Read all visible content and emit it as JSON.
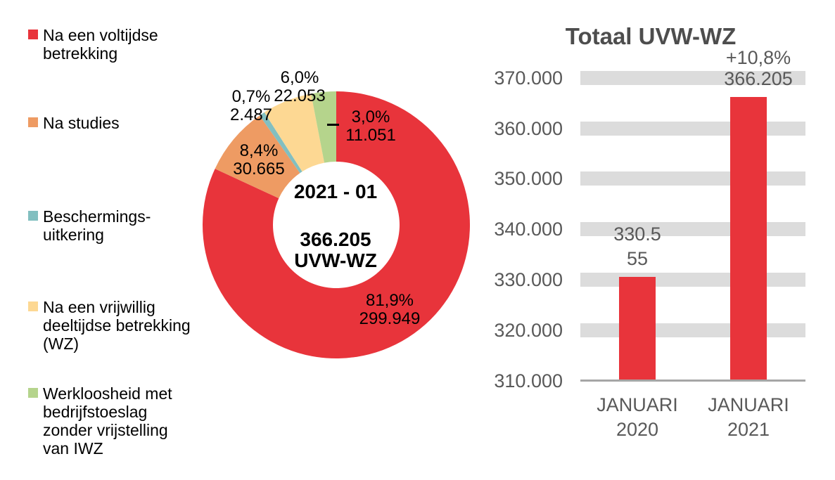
{
  "legend": {
    "items": [
      {
        "label": "Na een voltijdse\nbetrekking",
        "color": "#E8343B"
      },
      {
        "label": "Na studies",
        "color": "#EE9B63"
      },
      {
        "label": "Beschermings-\nuitkering",
        "color": "#82BFC0"
      },
      {
        "label": "Na een vrijwillig\ndeeltijdse betrekking\n(WZ)",
        "color": "#FDD893"
      },
      {
        "label": "Werkloosheid met\nbedrijfstoeslag\nzonder vrijstelling\nvan IWZ",
        "color": "#B5D48C"
      }
    ]
  },
  "chart_data": [
    {
      "type": "pie",
      "subtype": "donut",
      "center_labels": {
        "period": "2021 - 01",
        "total": "366.205",
        "unit": "UVW-WZ"
      },
      "total_value": 366205,
      "start_angle": "12-o-clock, clockwise",
      "slices": [
        {
          "category": "Na een voltijdse betrekking",
          "value": 299949,
          "percent": 81.9,
          "percent_label": "81,9%",
          "value_label": "299.949",
          "color": "#E8343B"
        },
        {
          "category": "Na studies",
          "value": 30665,
          "percent": 8.4,
          "percent_label": "8,4%",
          "value_label": "30.665",
          "color": "#EE9B63"
        },
        {
          "category": "Beschermingsuitkering",
          "value": 2487,
          "percent": 0.7,
          "percent_label": "0,7%",
          "value_label": "2.487",
          "color": "#82BFC0"
        },
        {
          "category": "Na een vrijwillig deeltijdse betrekking (WZ)",
          "value": 22053,
          "percent": 6.0,
          "percent_label": "6,0%",
          "value_label": "22.053",
          "color": "#FDD893"
        },
        {
          "category": "Werkloosheid met bedrijfstoeslag zonder vrijstelling van IWZ",
          "value": 11051,
          "percent": 3.0,
          "percent_label": "3,0%",
          "value_label": "11.051",
          "color": "#B5D48C"
        }
      ]
    },
    {
      "type": "bar",
      "title": "Totaal UVW-WZ",
      "categories": [
        "JANUARI\n2020",
        "JANUARI\n2021"
      ],
      "values": [
        330555,
        366205
      ],
      "bar_labels": [
        "330.5\n55",
        "+10,8%\n366.205"
      ],
      "change_label": "+10,8%",
      "bar_color": "#E8343B",
      "ylabel": "",
      "xlabel": "",
      "ylim": [
        310000,
        370000
      ],
      "ytick_step": 10000,
      "ytick_labels": [
        "370.000",
        "360.000",
        "350.000",
        "340.000",
        "330.000",
        "320.000",
        "310.000"
      ],
      "grid": "thick-horizontal-bands",
      "grid_color": "#DCDCDC",
      "axis_color": "#A6A6A6",
      "legend_position": "none"
    }
  ]
}
